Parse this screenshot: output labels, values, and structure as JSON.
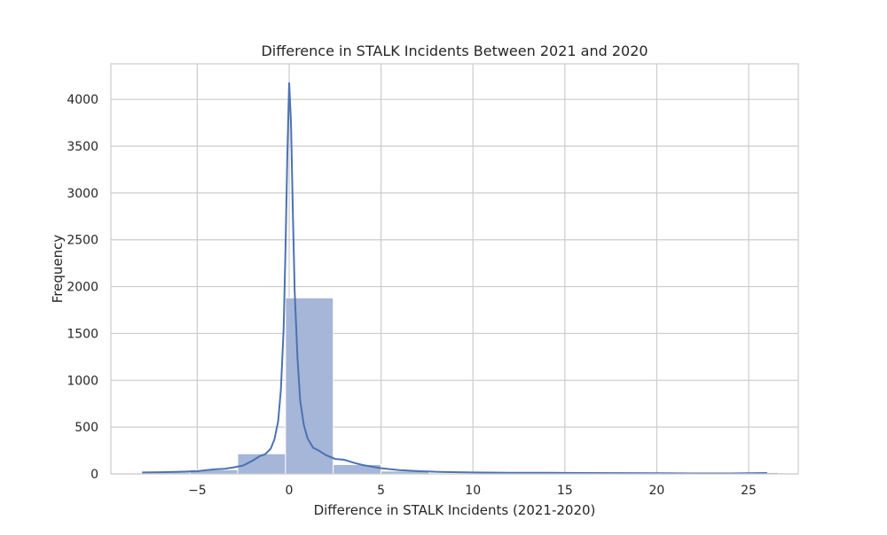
{
  "chart_data": {
    "type": "histogram",
    "title": "Difference in STALK Incidents Between 2021 and 2020",
    "xlabel": "Difference in STALK Incidents (2021-2020)",
    "ylabel": "Frequency",
    "xlim": [
      -9.7,
      27.7
    ],
    "ylim": [
      0,
      4380
    ],
    "x_ticks": [
      -5,
      0,
      5,
      10,
      15,
      20,
      25
    ],
    "x_tick_labels": [
      "−5",
      "0",
      "5",
      "10",
      "15",
      "20",
      "25"
    ],
    "y_ticks": [
      0,
      500,
      1000,
      1500,
      2000,
      2500,
      3000,
      3500,
      4000
    ],
    "y_tick_labels": [
      "0",
      "500",
      "1000",
      "1500",
      "2000",
      "2500",
      "3000",
      "3500",
      "4000"
    ],
    "grid": true,
    "colors": {
      "bar_fill": "#a5b6d8",
      "bar_edge": "#ffffff",
      "kde_line": "#4c72b0",
      "grid": "#cccccc",
      "frame": "#cccccc"
    },
    "bins": [
      {
        "x0": -8,
        "x1": -5.4,
        "count": 18
      },
      {
        "x0": -5.4,
        "x1": -2.8,
        "count": 45
      },
      {
        "x0": -2.8,
        "x1": -0.2,
        "count": 215
      },
      {
        "x0": -0.2,
        "x1": 2.4,
        "count": 1880
      },
      {
        "x0": 2.4,
        "x1": 5.0,
        "count": 100
      },
      {
        "x0": 5.0,
        "x1": 7.6,
        "count": 30
      },
      {
        "x0": 7.6,
        "x1": 10.2,
        "count": 8
      },
      {
        "x0": 10.2,
        "x1": 12.8,
        "count": 12
      },
      {
        "x0": 12.8,
        "x1": 15.4,
        "count": 8
      },
      {
        "x0": 15.4,
        "x1": 18.0,
        "count": 12
      },
      {
        "x0": 18.0,
        "x1": 20.6,
        "count": 3
      },
      {
        "x0": 20.6,
        "x1": 23.2,
        "count": 3
      },
      {
        "x0": 23.2,
        "x1": 25.8,
        "count": 3
      },
      {
        "x0": 25.8,
        "x1": 26.6,
        "count": 15
      }
    ],
    "kde": {
      "x": [
        -8.0,
        -7.0,
        -6.0,
        -5.0,
        -4.5,
        -4.0,
        -3.5,
        -3.0,
        -2.5,
        -2.0,
        -1.6,
        -1.3,
        -1.0,
        -0.8,
        -0.6,
        -0.45,
        -0.3,
        -0.2,
        -0.1,
        0.0,
        0.1,
        0.2,
        0.3,
        0.45,
        0.6,
        0.8,
        1.0,
        1.3,
        1.6,
        2.0,
        2.5,
        3.0,
        3.5,
        4.0,
        5.0,
        6.0,
        7.0,
        8.0,
        10.0,
        12.0,
        14.0,
        16.0,
        18.0,
        20.0,
        22.0,
        24.0,
        26.0
      ],
      "y": [
        15,
        18,
        22,
        28,
        40,
        50,
        55,
        70,
        90,
        140,
        190,
        210,
        270,
        370,
        560,
        900,
        1550,
        2400,
        3400,
        4180,
        3750,
        2800,
        1950,
        1250,
        780,
        520,
        380,
        280,
        250,
        200,
        160,
        150,
        120,
        95,
        60,
        40,
        30,
        22,
        15,
        12,
        12,
        10,
        8,
        7,
        5,
        5,
        10
      ]
    }
  }
}
